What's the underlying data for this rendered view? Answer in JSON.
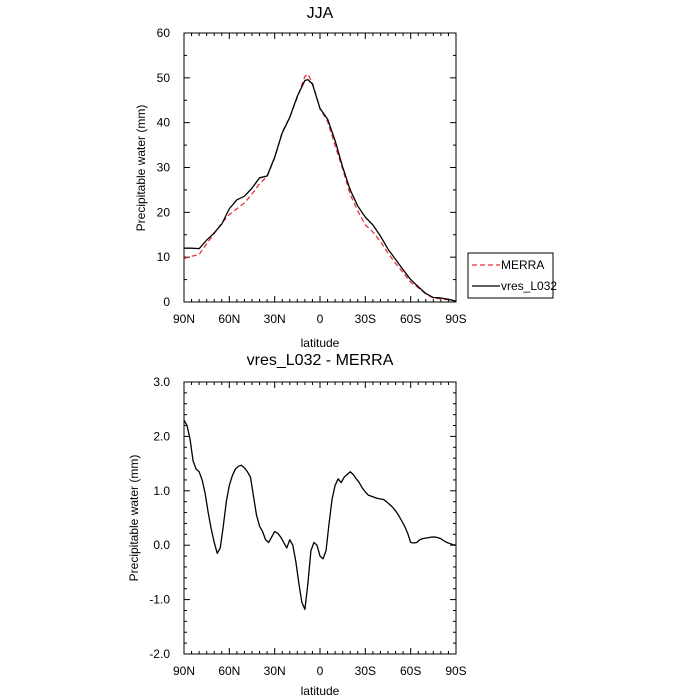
{
  "chart_data": [
    {
      "type": "line",
      "title": "JJA",
      "xlabel": "latitude",
      "ylabel": "Precipitable water (mm)",
      "xlim": [
        90,
        -90
      ],
      "ylim": [
        0,
        60
      ],
      "yticks": [
        0,
        10,
        20,
        30,
        40,
        50,
        60
      ],
      "ytick_labels": [
        "0",
        "10",
        "20",
        "30",
        "40",
        "50",
        "60"
      ],
      "xticks": [
        90,
        60,
        30,
        0,
        -30,
        -60,
        -90
      ],
      "xtick_labels": [
        "90N",
        "60N",
        "30N",
        "0",
        "30S",
        "60S",
        "90S"
      ],
      "legend": [
        "MERRA",
        "vres_L032"
      ],
      "series": [
        {
          "name": "MERRA",
          "style": "dashed",
          "color": "#e8303a",
          "x": [
            90,
            85,
            80,
            75,
            70,
            65,
            60,
            55,
            50,
            45,
            40,
            35,
            30,
            25,
            20,
            15,
            10,
            8,
            5,
            0,
            -5,
            -10,
            -15,
            -20,
            -25,
            -30,
            -35,
            -40,
            -45,
            -50,
            -55,
            -60,
            -65,
            -70,
            -75,
            -80,
            -85,
            -90
          ],
          "values": [
            9.7,
            10.2,
            10.6,
            13.0,
            15.3,
            17.6,
            19.5,
            20.8,
            22.1,
            24.1,
            26.4,
            28.0,
            32.1,
            37.9,
            41.2,
            45.7,
            50.3,
            50.8,
            48.8,
            43.1,
            40.3,
            34.9,
            29.7,
            24.0,
            20.3,
            17.2,
            15.6,
            13.5,
            10.9,
            8.6,
            6.6,
            4.4,
            3.2,
            1.8,
            0.9,
            0.7,
            0.5,
            0.2
          ]
        },
        {
          "name": "vres_L032",
          "style": "solid",
          "color": "#000000",
          "x": [
            90,
            85,
            80,
            75,
            70,
            65,
            60,
            55,
            50,
            45,
            40,
            35,
            30,
            25,
            20,
            15,
            10,
            8,
            5,
            0,
            -5,
            -10,
            -15,
            -20,
            -25,
            -30,
            -35,
            -40,
            -45,
            -50,
            -55,
            -60,
            -65,
            -70,
            -75,
            -80,
            -85,
            -90
          ],
          "values": [
            12.0,
            12.0,
            11.9,
            13.8,
            15.4,
            17.4,
            20.8,
            22.8,
            23.6,
            25.4,
            27.7,
            28.1,
            32.3,
            37.7,
            41.2,
            45.9,
            49.4,
            49.6,
            48.6,
            43.2,
            40.8,
            36.0,
            30.1,
            25.0,
            21.4,
            18.9,
            17.2,
            14.7,
            11.8,
            9.5,
            7.2,
            5.0,
            3.4,
            1.9,
            1.0,
            0.9,
            0.6,
            0.2
          ]
        }
      ]
    },
    {
      "type": "line",
      "title": "vres_L032 - MERRA",
      "xlabel": "latitude",
      "ylabel": "Precipitable water (mm)",
      "xlim": [
        90,
        -90
      ],
      "ylim": [
        -2,
        3
      ],
      "yticks": [
        -2,
        -1,
        0,
        1,
        2,
        3
      ],
      "ytick_labels": [
        "-2.0",
        "-1.0",
        "0.0",
        "1.0",
        "2.0",
        "3.0"
      ],
      "xticks": [
        90,
        60,
        30,
        0,
        -30,
        -60,
        -90
      ],
      "xtick_labels": [
        "90N",
        "60N",
        "30N",
        "0",
        "30S",
        "60S",
        "90S"
      ],
      "series": [
        {
          "name": "vres_L032 - MERRA",
          "style": "solid",
          "color": "#000000",
          "x": [
            90,
            88,
            86,
            84,
            82,
            80,
            78,
            76,
            74,
            72,
            70,
            68,
            66,
            64,
            62,
            60,
            58,
            56,
            54,
            52,
            50,
            48,
            46,
            44,
            42,
            40,
            38,
            36,
            34,
            32,
            30,
            28,
            26,
            24,
            22,
            20,
            18,
            16,
            14,
            12,
            10,
            8,
            6,
            4,
            2,
            0,
            -2,
            -4,
            -6,
            -8,
            -10,
            -12,
            -14,
            -16,
            -18,
            -20,
            -22,
            -24,
            -26,
            -28,
            -30,
            -32,
            -34,
            -36,
            -38,
            -40,
            -42,
            -44,
            -46,
            -48,
            -50,
            -52,
            -54,
            -56,
            -58,
            -60,
            -62,
            -64,
            -66,
            -68,
            -70,
            -72,
            -74,
            -76,
            -78,
            -80,
            -82,
            -84,
            -86,
            -88,
            -90
          ],
          "values": [
            2.3,
            2.2,
            1.95,
            1.55,
            1.4,
            1.35,
            1.2,
            0.95,
            0.6,
            0.3,
            0.05,
            -0.15,
            -0.05,
            0.35,
            0.8,
            1.1,
            1.28,
            1.4,
            1.45,
            1.47,
            1.42,
            1.35,
            1.25,
            0.9,
            0.55,
            0.35,
            0.25,
            0.1,
            0.05,
            0.15,
            0.25,
            0.22,
            0.15,
            0.05,
            -0.05,
            0.1,
            0.0,
            -0.3,
            -0.7,
            -1.05,
            -1.18,
            -0.7,
            -0.1,
            0.05,
            0.0,
            -0.2,
            -0.25,
            -0.1,
            0.4,
            0.85,
            1.1,
            1.22,
            1.15,
            1.25,
            1.3,
            1.35,
            1.3,
            1.22,
            1.15,
            1.05,
            0.98,
            0.92,
            0.9,
            0.88,
            0.86,
            0.85,
            0.84,
            0.8,
            0.75,
            0.7,
            0.63,
            0.55,
            0.45,
            0.35,
            0.22,
            0.05,
            0.04,
            0.05,
            0.1,
            0.12,
            0.13,
            0.14,
            0.15,
            0.15,
            0.14,
            0.12,
            0.08,
            0.05,
            0.03,
            0.01,
            0.0
          ]
        }
      ]
    }
  ]
}
